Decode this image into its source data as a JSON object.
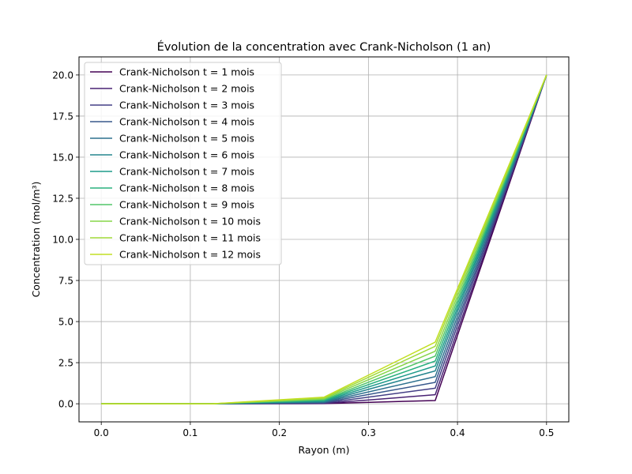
{
  "chart_data": {
    "type": "line",
    "title": "Évolution de la concentration avec Crank-Nicholson (1 an)",
    "xlabel": "Rayon (m)",
    "ylabel": "Concentration (mol/m³)",
    "xlim": [
      -0.025,
      0.525
    ],
    "ylim": [
      -1.1,
      21.1
    ],
    "xticks": [
      0.0,
      0.1,
      0.2,
      0.3,
      0.4,
      0.5
    ],
    "xtick_labels": [
      "0.0",
      "0.1",
      "0.2",
      "0.3",
      "0.4",
      "0.5"
    ],
    "yticks": [
      0.0,
      2.5,
      5.0,
      7.5,
      10.0,
      12.5,
      15.0,
      17.5,
      20.0
    ],
    "ytick_labels": [
      "0.0",
      "2.5",
      "5.0",
      "7.5",
      "10.0",
      "12.5",
      "15.0",
      "17.5",
      "20.0"
    ],
    "grid": true,
    "legend_position": "top-left",
    "x": [
      0.0,
      0.125,
      0.25,
      0.375,
      0.5
    ],
    "series": [
      {
        "name": "Crank-Nicholson t = 1 mois",
        "color": "#440154",
        "values": [
          0.0,
          0.0,
          0.01,
          0.2,
          20.0
        ]
      },
      {
        "name": "Crank-Nicholson t = 2 mois",
        "color": "#482173",
        "values": [
          0.0,
          0.0,
          0.02,
          0.55,
          20.0
        ]
      },
      {
        "name": "Crank-Nicholson t = 3 mois",
        "color": "#433e85",
        "values": [
          0.0,
          0.0,
          0.04,
          0.95,
          20.0
        ]
      },
      {
        "name": "Crank-Nicholson t = 4 mois",
        "color": "#38588c",
        "values": [
          0.0,
          0.0,
          0.07,
          1.3,
          20.0
        ]
      },
      {
        "name": "Crank-Nicholson t = 5 mois",
        "color": "#2d708e",
        "values": [
          0.0,
          0.0,
          0.1,
          1.65,
          20.0
        ]
      },
      {
        "name": "Crank-Nicholson t = 6 mois",
        "color": "#25858e",
        "values": [
          0.0,
          0.0,
          0.13,
          2.0,
          20.0
        ]
      },
      {
        "name": "Crank-Nicholson t = 7 mois",
        "color": "#1e9b8a",
        "values": [
          0.0,
          0.0,
          0.17,
          2.3,
          20.0
        ]
      },
      {
        "name": "Crank-Nicholson t = 8 mois",
        "color": "#2ab07f",
        "values": [
          0.0,
          0.0,
          0.21,
          2.6,
          20.0
        ]
      },
      {
        "name": "Crank-Nicholson t = 9 mois",
        "color": "#52c569",
        "values": [
          0.0,
          0.0,
          0.25,
          2.9,
          20.0
        ]
      },
      {
        "name": "Crank-Nicholson t = 10 mois",
        "color": "#86d549",
        "values": [
          0.0,
          0.0,
          0.3,
          3.2,
          20.0
        ]
      },
      {
        "name": "Crank-Nicholson t = 11 mois",
        "color": "#a0da39",
        "values": [
          0.0,
          0.0,
          0.35,
          3.5,
          20.0
        ]
      },
      {
        "name": "Crank-Nicholson t = 12 mois",
        "color": "#c2df23",
        "values": [
          0.0,
          0.0,
          0.4,
          3.75,
          20.0
        ]
      }
    ]
  }
}
